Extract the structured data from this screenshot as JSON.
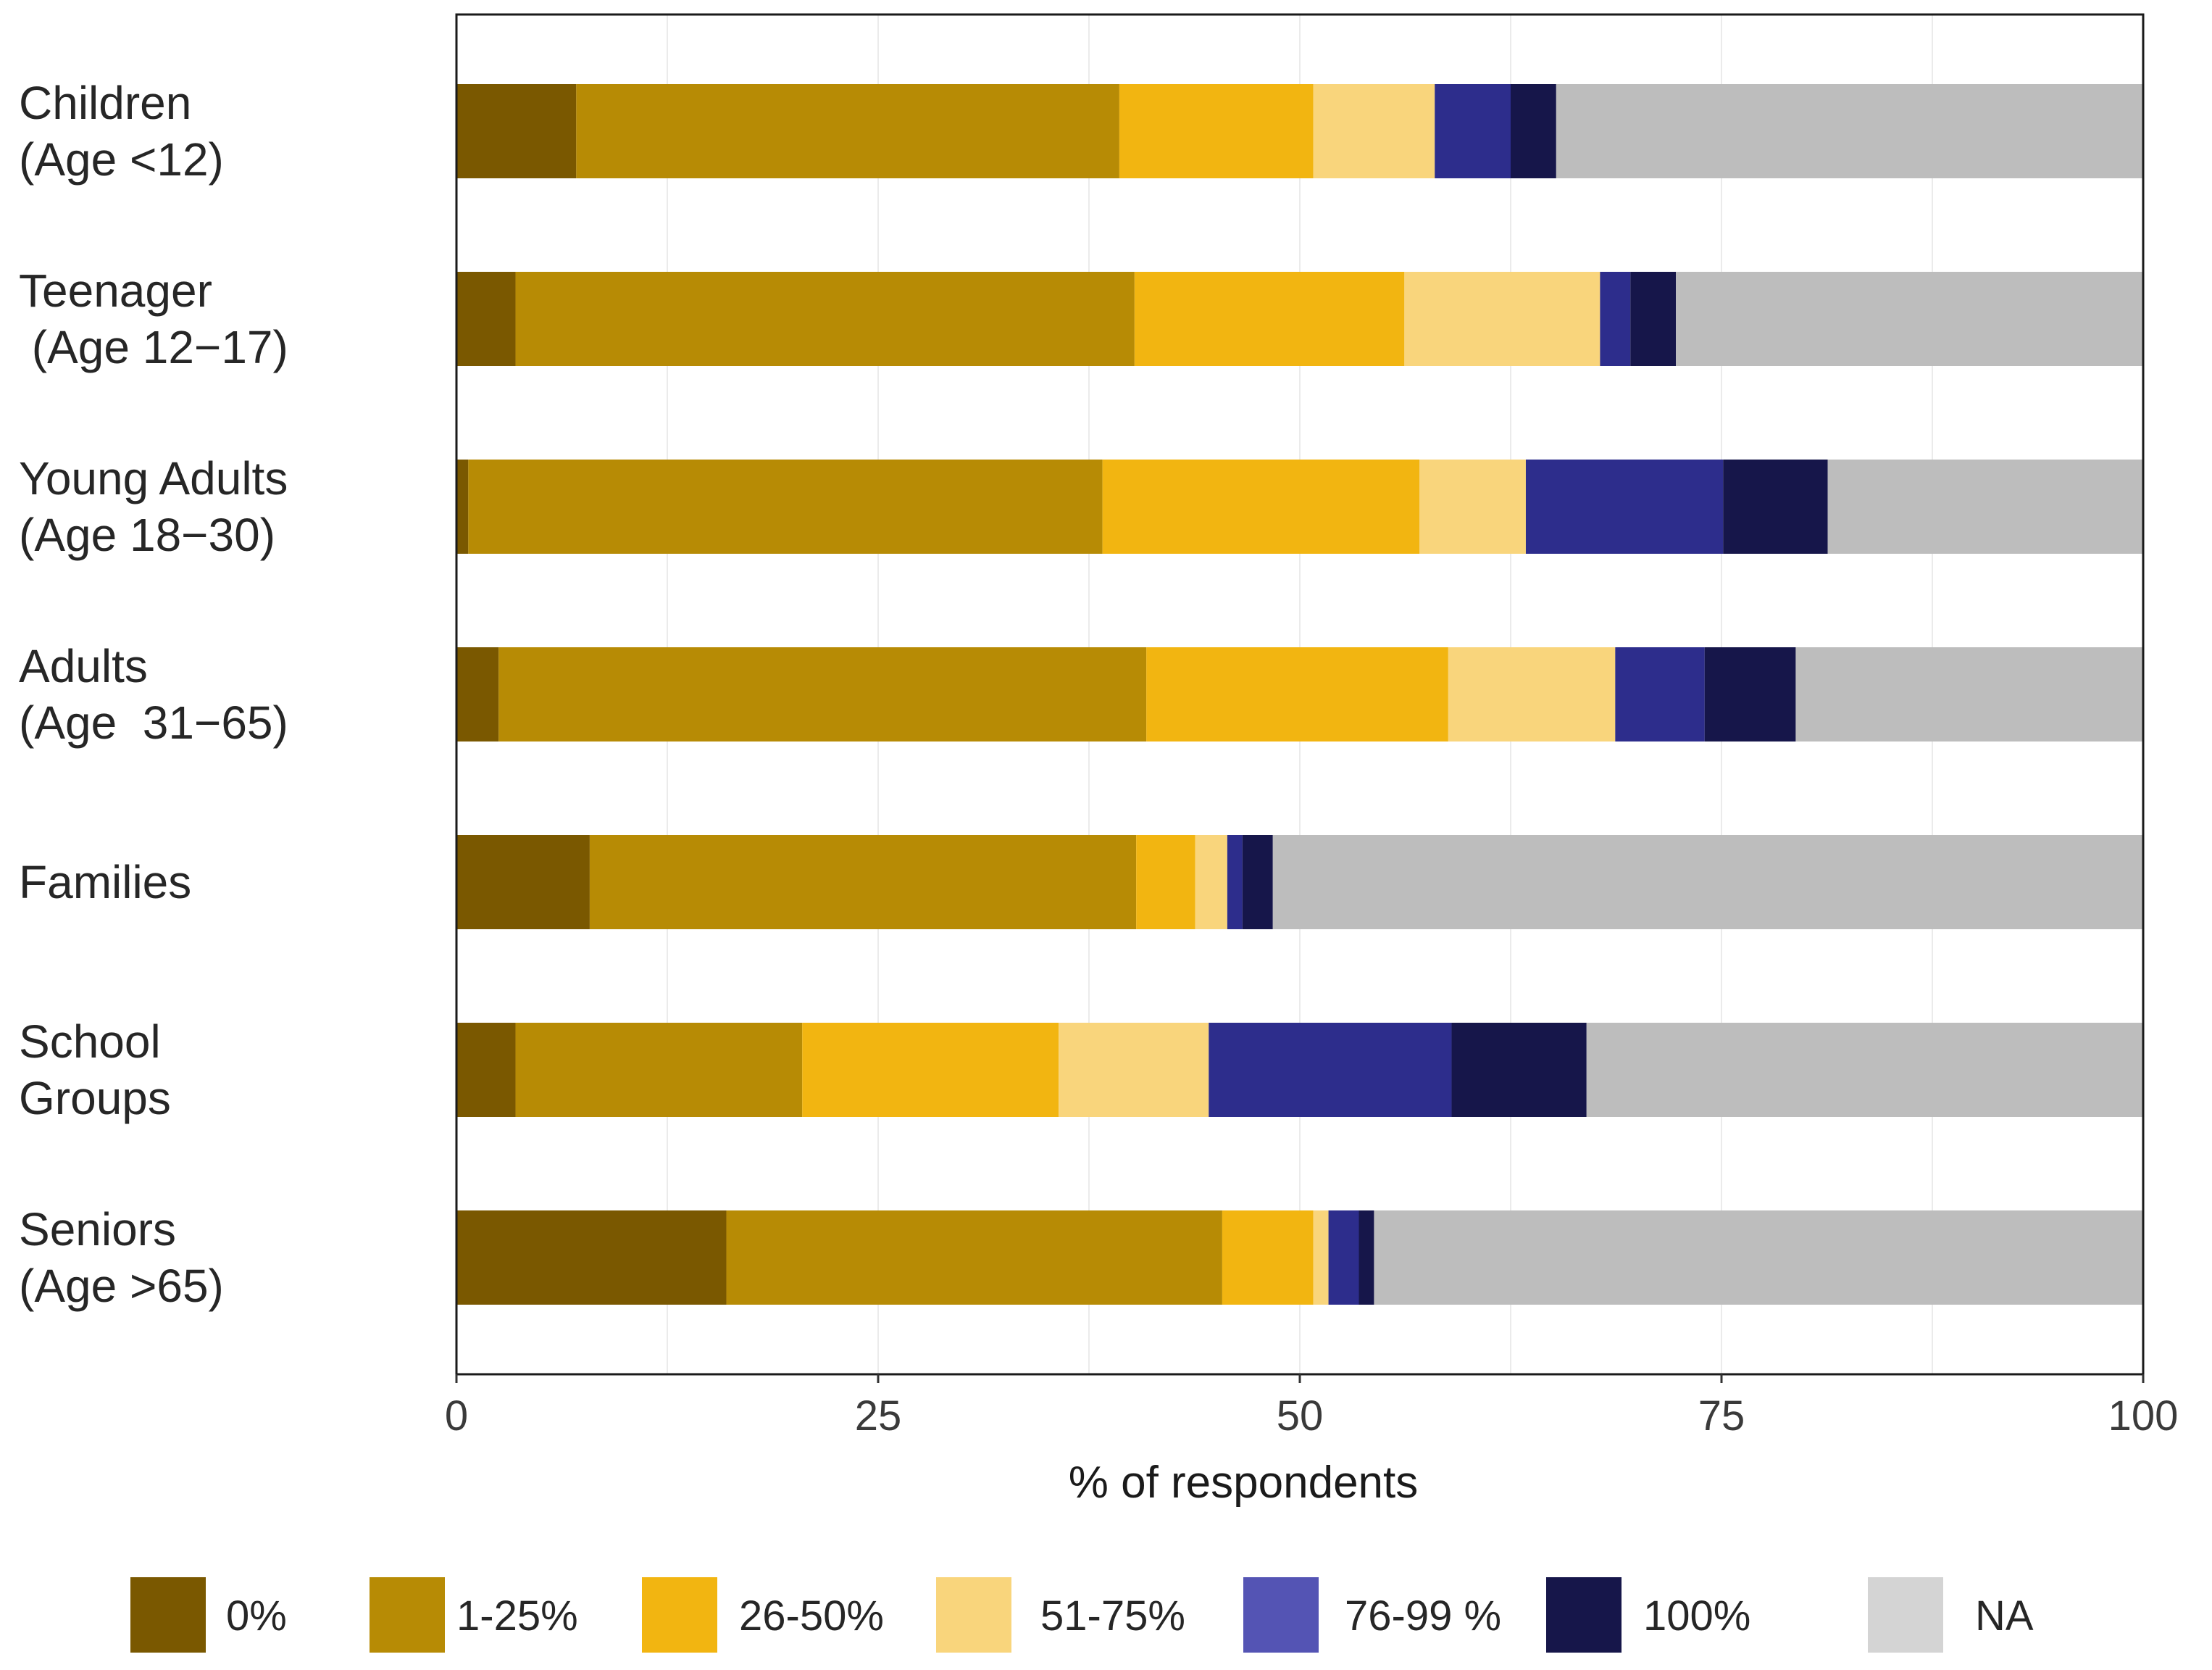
{
  "chart_data": {
    "type": "bar",
    "orientation": "horizontal",
    "stacked": true,
    "title": "",
    "xlabel": "% of respondents",
    "ylabel": "",
    "xlim": [
      0,
      100
    ],
    "xticks": [
      0,
      25,
      50,
      75,
      100
    ],
    "grid": true,
    "legend_position": "bottom",
    "categories": [
      "Children\n(Age <12)",
      "Teenager\n (Age 12−17)",
      "Young Adults\n(Age 18−30)",
      "Adults\n(Age  31−65)",
      "Families",
      "School\nGroups",
      "Seniors\n(Age >65)"
    ],
    "series": [
      {
        "name": "0%",
        "color": "#7a5800",
        "values": [
          7.1,
          3.5,
          0.7,
          2.5,
          7.9,
          3.5,
          16.0
        ]
      },
      {
        "name": "1-25%",
        "color": "#b78b05",
        "values": [
          32.2,
          36.7,
          37.6,
          38.4,
          32.4,
          17.0,
          29.4
        ]
      },
      {
        "name": "26-50%",
        "color": "#f2b511",
        "values": [
          11.5,
          16.0,
          18.8,
          17.9,
          3.5,
          15.2,
          5.4
        ]
      },
      {
        "name": "51-75%",
        "color": "#f9d57c",
        "values": [
          7.2,
          11.6,
          6.3,
          9.9,
          1.9,
          8.9,
          0.9
        ]
      },
      {
        "name": "76-99 %",
        "color": "#2d2d8c",
        "values": [
          4.5,
          1.8,
          11.7,
          5.3,
          0.9,
          14.4,
          1.8
        ]
      },
      {
        "name": "100%",
        "color": "#16164a",
        "values": [
          2.7,
          2.7,
          6.2,
          5.4,
          1.8,
          8.0,
          0.9
        ]
      },
      {
        "name": "NA",
        "color": "#bdbdbd",
        "values": [
          34.8,
          27.7,
          18.7,
          20.6,
          51.6,
          33.0,
          45.6
        ]
      }
    ],
    "legend_colors": {
      "0%": "#7a5800",
      "1-25%": "#b78b05",
      "26-50%": "#f2b511",
      "51-75%": "#f9d57c",
      "76-99 %": "#5454b4",
      "100%": "#16164a",
      "NA": "#d4d4d4"
    }
  }
}
